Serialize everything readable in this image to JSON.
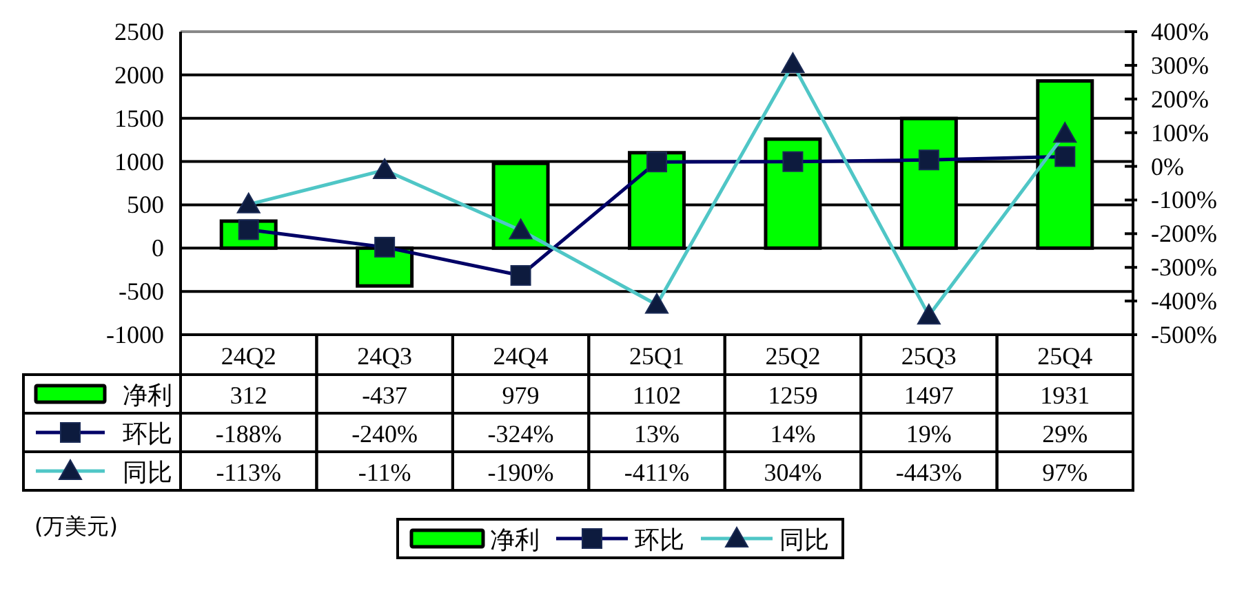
{
  "chart_data": {
    "type": "bar",
    "categories": [
      "24Q2",
      "24Q3",
      "24Q4",
      "25Q1",
      "25Q2",
      "25Q3",
      "25Q4"
    ],
    "series": [
      {
        "name": "净利",
        "color": "#00ff00",
        "values": [
          312,
          -437,
          979,
          1102,
          1259,
          1497,
          1931
        ],
        "value_labels": [
          "312",
          "-437",
          "979",
          "1102",
          "1259",
          "1497",
          "1931"
        ]
      },
      {
        "name": "环比",
        "type": "line",
        "axis": "y2",
        "marker": "square",
        "color": "#000066",
        "values": [
          -188,
          -240,
          -324,
          13,
          14,
          19,
          29
        ],
        "value_labels": [
          "-188%",
          "-240%",
          "-324%",
          "13%",
          "14%",
          "19%",
          "29%"
        ]
      },
      {
        "name": "同比",
        "type": "line",
        "axis": "y2",
        "marker": "triangle",
        "color": "#4fc6c6",
        "values": [
          -113,
          -11,
          -190,
          -411,
          304,
          -443,
          97
        ],
        "value_labels": [
          "-113%",
          "-11%",
          "-190%",
          "-411%",
          "304%",
          "-443%",
          "97%"
        ]
      }
    ],
    "ylim": [
      -1000,
      2500
    ],
    "yticks": [
      -1000,
      -500,
      0,
      500,
      1000,
      1500,
      2000,
      2500
    ],
    "y2lim": [
      -500,
      400
    ],
    "y2ticks": [
      {
        "value": -500,
        "label": "-500%"
      },
      {
        "value": -400,
        "label": "-400%"
      },
      {
        "value": -300,
        "label": "-300%"
      },
      {
        "value": -200,
        "label": "-200%"
      },
      {
        "value": -100,
        "label": "-100%"
      },
      {
        "value": 0,
        "label": "0%"
      },
      {
        "value": 100,
        "label": "100%"
      },
      {
        "value": 200,
        "label": "200%"
      },
      {
        "value": 300,
        "label": "300%"
      },
      {
        "value": 400,
        "label": "400%"
      }
    ],
    "grid": "y",
    "legend": "bottom",
    "annotations": [
      "(万美元)"
    ]
  }
}
